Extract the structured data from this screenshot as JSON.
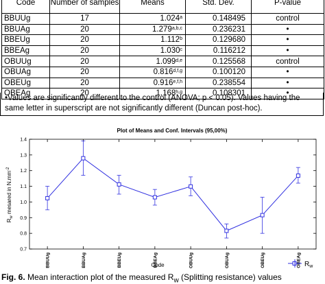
{
  "table": {
    "headers": [
      "Code",
      "Number of samples",
      "Means",
      "Std. Dev.",
      "P-value"
    ],
    "rows": [
      {
        "code": "BBUUg",
        "n": "17",
        "mean": "1.024",
        "sup": "a",
        "sd": "0.148495",
        "p": "control"
      },
      {
        "code": "BBUAg",
        "n": "20",
        "mean": "1.279",
        "sup": "a,b,c",
        "sd": "0.236231",
        "p": "•"
      },
      {
        "code": "BBEUg",
        "n": "20",
        "mean": "1.112",
        "sup": "b",
        "sd": "0.129680",
        "p": "•"
      },
      {
        "code": "BBEAg",
        "n": "20",
        "mean": "1.030",
        "sup": "c",
        "sd": "0.116212",
        "p": "•"
      },
      {
        "code": "OBUUg",
        "n": "20",
        "mean": "1.099",
        "sup": "d,e",
        "sd": "0.125568",
        "p": "control"
      },
      {
        "code": "OBUAg",
        "n": "20",
        "mean": "0.816",
        "sup": "d,f,g",
        "sd": "0.100120",
        "p": "•"
      },
      {
        "code": "OBEUg",
        "n": "20",
        "mean": "0.916",
        "sup": "e,f,h",
        "sd": "0.238554",
        "p": "•"
      },
      {
        "code": "OBEAg",
        "n": "20",
        "mean": "1.168",
        "sup": "h,g",
        "sd": "0.108301",
        "p": "•"
      }
    ],
    "note": "•Values are significantly different to the control (ANOVA; p < 0.05). Values having the same letter in superscript are not significantly different (Duncan post-hoc)."
  },
  "chart_data": {
    "type": "line",
    "title": "Plot of Means and Conf. Intervals (95,00%)",
    "xlabel": "Code",
    "ylabel_main": "R",
    "ylabel_sub": "w",
    "ylabel_rest": " mesared in N.mm",
    "ylabel_sup": "-2",
    "ylim": [
      0.7,
      1.4
    ],
    "yticks": [
      "0.7",
      "0.8",
      "0.9",
      "1.0",
      "1.1",
      "1.2",
      "1.3",
      "1.4"
    ],
    "grid": false,
    "legend_position": "bottom-right",
    "categories": [
      "BBUUg",
      "BBUAg",
      "BBEUg",
      "BBEAg",
      "OBUUg",
      "OBUAg",
      "OBEUg",
      "OBEAg"
    ],
    "series": [
      {
        "name": "R",
        "name_sub": "w",
        "color": "#2f2fe0",
        "values": [
          1.024,
          1.279,
          1.112,
          1.03,
          1.099,
          0.816,
          0.916,
          1.168
        ],
        "ci_low": [
          0.95,
          1.17,
          1.05,
          0.98,
          1.04,
          0.77,
          0.8,
          1.12
        ],
        "ci_high": [
          1.1,
          1.39,
          1.17,
          1.08,
          1.16,
          0.86,
          1.03,
          1.22
        ]
      }
    ]
  },
  "caption": {
    "label": "Fig. 6.",
    "text_before": " Mean interaction plot of the measured R",
    "sub": "w",
    "text_after": " (Splitting resistance) values"
  }
}
